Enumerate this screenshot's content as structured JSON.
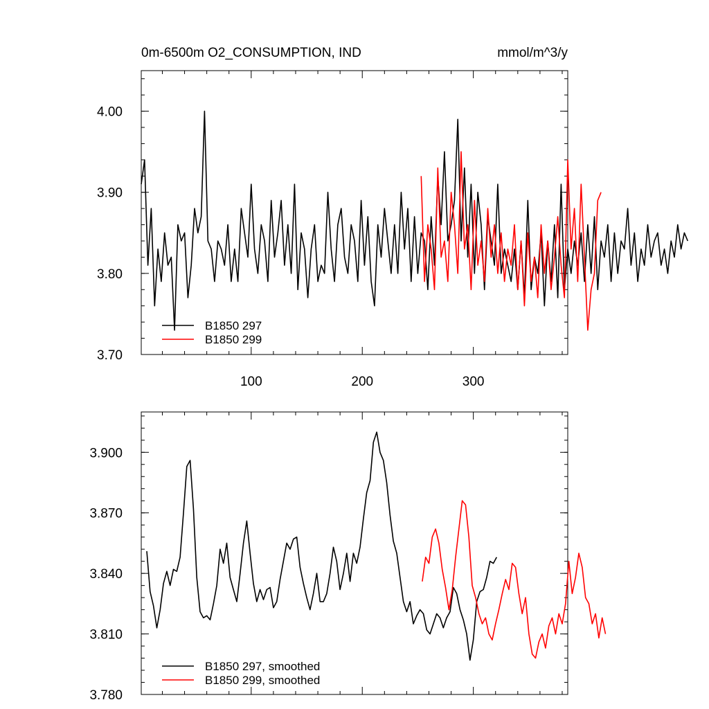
{
  "colors": {
    "series1": "#000000",
    "series2": "#ff0000"
  },
  "chart_data": [
    {
      "type": "line",
      "title": "0m-6500m O2_CONSUMPTION, IND",
      "units": "mmol/m^3/y",
      "xlabel": "",
      "ylabel": "",
      "xlim": [
        1,
        385
      ],
      "ylim": [
        3.7,
        4.05
      ],
      "xticks": [
        100,
        200,
        300
      ],
      "xtick_labels": [
        "100",
        "200",
        "300"
      ],
      "yticks": [
        3.7,
        3.8,
        3.9,
        4.0
      ],
      "ytick_labels": [
        "3.70",
        "3.80",
        "3.90",
        "4.00"
      ],
      "legend_position": "bottom-left",
      "series": [
        {
          "name": "B1850 297",
          "color": "#000000",
          "x_start": 1,
          "x_step": 3,
          "values": [
            3.91,
            3.94,
            3.81,
            3.88,
            3.76,
            3.83,
            3.79,
            3.85,
            3.81,
            3.82,
            3.73,
            3.86,
            3.84,
            3.85,
            3.77,
            3.81,
            3.88,
            3.85,
            3.87,
            4.0,
            3.84,
            3.83,
            3.79,
            3.84,
            3.83,
            3.81,
            3.86,
            3.79,
            3.83,
            3.79,
            3.88,
            3.85,
            3.82,
            3.91,
            3.83,
            3.8,
            3.86,
            3.84,
            3.79,
            3.89,
            3.82,
            3.85,
            3.89,
            3.81,
            3.86,
            3.8,
            3.91,
            3.78,
            3.85,
            3.83,
            3.77,
            3.83,
            3.86,
            3.79,
            3.81,
            3.8,
            3.9,
            3.83,
            3.79,
            3.86,
            3.88,
            3.82,
            3.8,
            3.86,
            3.84,
            3.79,
            3.89,
            3.81,
            3.87,
            3.79,
            3.76,
            3.86,
            3.82,
            3.88,
            3.84,
            3.8,
            3.86,
            3.8,
            3.9,
            3.83,
            3.88,
            3.79,
            3.87,
            3.8,
            3.85,
            3.84,
            3.78,
            3.87,
            3.81,
            3.92,
            3.86,
            3.95,
            3.84,
            3.86,
            3.89,
            3.99,
            3.84,
            3.93,
            3.82,
            3.91,
            3.8,
            3.9,
            3.86,
            3.78,
            3.87,
            3.84,
            3.81,
            3.91,
            3.8,
            3.83,
            3.81,
            3.79,
            3.83,
            3.78,
            3.84,
            3.77,
            3.89,
            3.78,
            3.82,
            3.8,
            3.85,
            3.76,
            3.84,
            3.79,
            3.86,
            3.77,
            3.91,
            3.78,
            3.83,
            3.8,
            3.84,
            3.81,
            3.85,
            3.79,
            3.86,
            3.8,
            3.87,
            3.78,
            3.84,
            3.82,
            3.86,
            3.79,
            3.85,
            3.8,
            3.84,
            3.83,
            3.88,
            3.81,
            3.85,
            3.79,
            3.83,
            3.81,
            3.86,
            3.82,
            3.84,
            3.85,
            3.81,
            3.83,
            3.8,
            3.84,
            3.82,
            3.86,
            3.83,
            3.85,
            3.84
          ]
        },
        {
          "name": "B1850 299",
          "color": "#ff0000",
          "x_start": 253,
          "x_step": 3,
          "values": [
            3.92,
            3.79,
            3.86,
            3.83,
            3.78,
            3.93,
            3.82,
            3.84,
            3.79,
            3.9,
            3.86,
            3.8,
            3.95,
            3.83,
            3.86,
            3.78,
            3.89,
            3.81,
            3.84,
            3.79,
            3.88,
            3.82,
            3.86,
            3.8,
            3.85,
            3.79,
            3.83,
            3.81,
            3.86,
            3.78,
            3.84,
            3.76,
            3.85,
            3.79,
            3.82,
            3.77,
            3.86,
            3.8,
            3.84,
            3.78,
            3.82,
            3.87,
            3.81,
            3.77,
            3.94,
            3.83,
            3.88,
            3.79,
            3.91,
            3.82,
            3.73,
            3.78,
            3.8,
            3.89,
            3.9
          ]
        }
      ]
    },
    {
      "type": "line",
      "title": "",
      "xlabel": "",
      "ylabel": "",
      "xlim": [
        1,
        385
      ],
      "ylim": [
        3.78,
        3.92
      ],
      "xticks": [
        100,
        200,
        300
      ],
      "xtick_labels": [],
      "yticks": [
        3.78,
        3.81,
        3.84,
        3.87,
        3.9
      ],
      "ytick_labels": [
        "3.780",
        "3.810",
        "3.840",
        "3.870",
        "3.900"
      ],
      "legend_position": "bottom-left",
      "series": [
        {
          "name": "B1850 297, smoothed",
          "color": "#000000",
          "x_start": 6,
          "x_step": 3,
          "values": [
            3.851,
            3.831,
            3.824,
            3.813,
            3.822,
            3.835,
            3.841,
            3.834,
            3.842,
            3.841,
            3.848,
            3.87,
            3.893,
            3.896,
            3.872,
            3.838,
            3.821,
            3.818,
            3.819,
            3.817,
            3.825,
            3.834,
            3.852,
            3.845,
            3.855,
            3.838,
            3.832,
            3.826,
            3.84,
            3.855,
            3.866,
            3.85,
            3.835,
            3.826,
            3.832,
            3.827,
            3.832,
            3.833,
            3.823,
            3.826,
            3.837,
            3.846,
            3.855,
            3.852,
            3.857,
            3.858,
            3.843,
            3.835,
            3.828,
            3.822,
            3.83,
            3.84,
            3.826,
            3.826,
            3.83,
            3.84,
            3.853,
            3.846,
            3.832,
            3.84,
            3.85,
            3.836,
            3.85,
            3.845,
            3.853,
            3.867,
            3.88,
            3.886,
            3.905,
            3.91,
            3.9,
            3.896,
            3.885,
            3.869,
            3.856,
            3.85,
            3.838,
            3.826,
            3.821,
            3.826,
            3.815,
            3.819,
            3.822,
            3.82,
            3.812,
            3.81,
            3.815,
            3.82,
            3.818,
            3.813,
            3.818,
            3.821,
            3.833,
            3.83,
            3.822,
            3.817,
            3.81,
            3.797,
            3.807,
            3.826,
            3.831,
            3.832,
            3.838,
            3.846,
            3.845,
            3.848
          ]
        },
        {
          "name": "B1850 299, smoothed",
          "color": "#ff0000",
          "x_start": 254,
          "x_step": 3,
          "values": [
            3.836,
            3.848,
            3.845,
            3.858,
            3.862,
            3.855,
            3.842,
            3.833,
            3.822,
            3.832,
            3.848,
            3.862,
            3.876,
            3.874,
            3.858,
            3.834,
            3.828,
            3.82,
            3.815,
            3.818,
            3.81,
            3.807,
            3.815,
            3.822,
            3.83,
            3.837,
            3.832,
            3.845,
            3.843,
            3.83,
            3.82,
            3.828,
            3.81,
            3.8,
            3.798,
            3.806,
            3.81,
            3.803,
            3.814,
            3.818,
            3.81,
            3.82,
            3.815,
            3.825,
            3.846,
            3.83,
            3.838,
            3.85,
            3.843,
            3.828,
            3.825,
            3.815,
            3.82,
            3.808,
            3.818,
            3.81
          ]
        }
      ]
    }
  ]
}
